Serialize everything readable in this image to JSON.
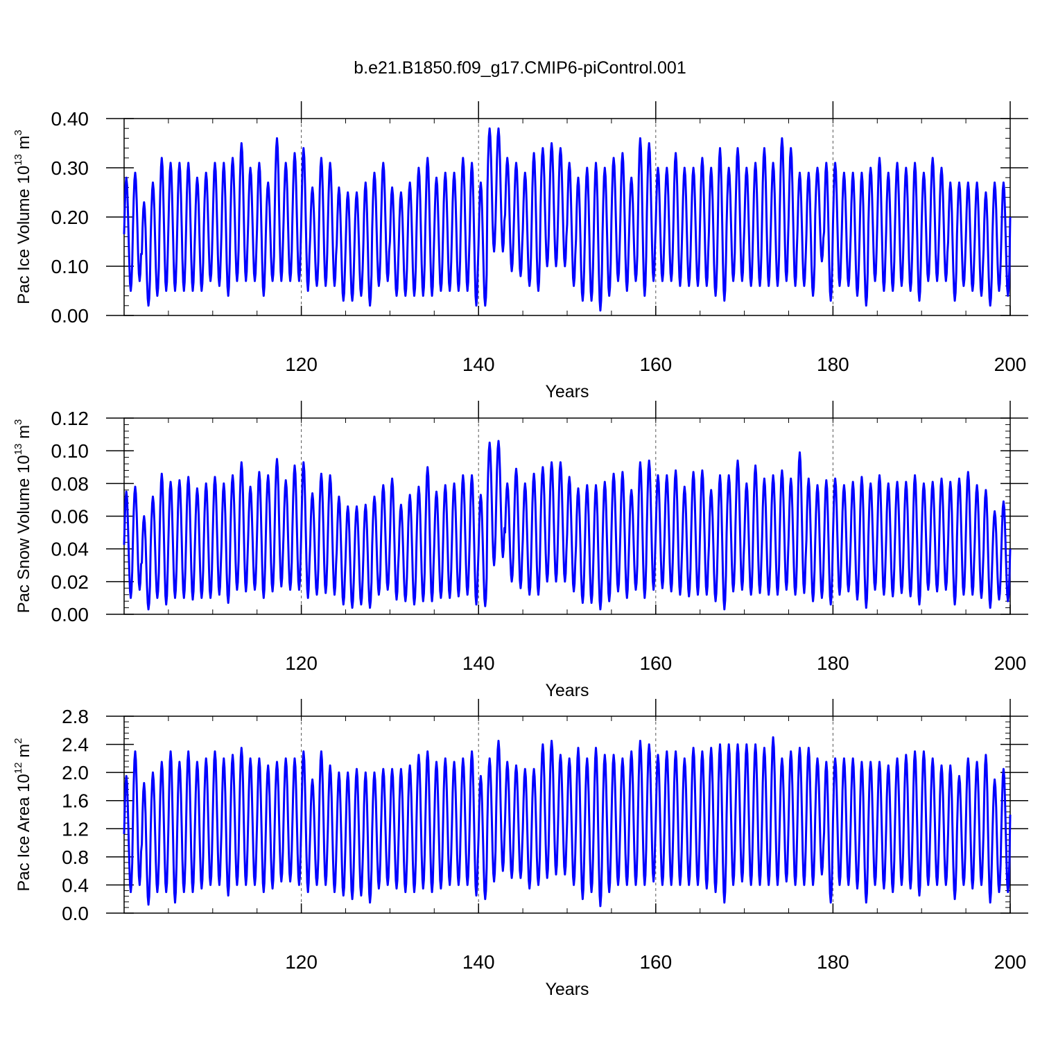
{
  "title": "b.e21.B1850.f09_g17.CMIP6-piControl.001",
  "colors": {
    "series": "#0000ff",
    "axis": "#000000",
    "grid": "#555555"
  },
  "chart_data": [
    {
      "type": "line",
      "title": "b.e21.B1850.f09_g17.CMIP6-piControl.001",
      "xlabel": "Years",
      "ylabel": {
        "text": "Pac Ice Volume 10",
        "exp": "13",
        "unit": " m",
        "unit_exp": "3"
      },
      "xlim": [
        100,
        200
      ],
      "ylim": [
        0,
        0.4
      ],
      "xticks": [
        120,
        140,
        160,
        180,
        200
      ],
      "xtick_labels": [
        "120",
        "140",
        "160",
        "180",
        "200"
      ],
      "yticks": [
        0,
        0.1,
        0.2,
        0.3,
        0.4
      ],
      "ytick_labels": [
        "0.00",
        "0.10",
        "0.20",
        "0.30",
        "0.40"
      ],
      "grid": "vertical dashed at x ticks",
      "series": [
        {
          "name": "Pac Ice Volume",
          "x_start": 100,
          "x_step": 1,
          "annual_max": [
            0.28,
            0.29,
            0.23,
            0.27,
            0.32,
            0.31,
            0.31,
            0.31,
            0.28,
            0.29,
            0.31,
            0.31,
            0.32,
            0.35,
            0.3,
            0.31,
            0.27,
            0.36,
            0.31,
            0.33,
            0.34,
            0.26,
            0.32,
            0.31,
            0.26,
            0.25,
            0.25,
            0.27,
            0.29,
            0.31,
            0.26,
            0.25,
            0.27,
            0.3,
            0.32,
            0.28,
            0.29,
            0.29,
            0.32,
            0.31,
            0.27,
            0.38,
            0.38,
            0.32,
            0.31,
            0.29,
            0.33,
            0.34,
            0.35,
            0.34,
            0.31,
            0.28,
            0.3,
            0.31,
            0.3,
            0.32,
            0.33,
            0.28,
            0.36,
            0.35,
            0.3,
            0.3,
            0.33,
            0.3,
            0.3,
            0.32,
            0.3,
            0.34,
            0.3,
            0.34,
            0.3,
            0.31,
            0.34,
            0.31,
            0.36,
            0.34,
            0.29,
            0.29,
            0.3,
            0.31,
            0.31,
            0.29,
            0.29,
            0.29,
            0.3,
            0.32,
            0.29,
            0.31,
            0.3,
            0.31,
            0.29,
            0.32,
            0.3,
            0.27,
            0.27,
            0.27,
            0.27,
            0.25,
            0.27,
            0.27
          ],
          "annual_min": [
            0.05,
            0.07,
            0.02,
            0.04,
            0.05,
            0.05,
            0.05,
            0.05,
            0.05,
            0.07,
            0.06,
            0.04,
            0.07,
            0.07,
            0.07,
            0.04,
            0.07,
            0.07,
            0.07,
            0.07,
            0.05,
            0.06,
            0.06,
            0.06,
            0.03,
            0.03,
            0.04,
            0.02,
            0.06,
            0.07,
            0.04,
            0.04,
            0.04,
            0.04,
            0.04,
            0.05,
            0.05,
            0.05,
            0.05,
            0.02,
            0.02,
            0.13,
            0.13,
            0.09,
            0.08,
            0.06,
            0.05,
            0.1,
            0.1,
            0.1,
            0.06,
            0.03,
            0.03,
            0.01,
            0.04,
            0.07,
            0.05,
            0.07,
            0.04,
            0.07,
            0.07,
            0.07,
            0.06,
            0.06,
            0.06,
            0.06,
            0.04,
            0.03,
            0.07,
            0.07,
            0.06,
            0.06,
            0.06,
            0.06,
            0.07,
            0.06,
            0.06,
            0.04,
            0.11,
            0.03,
            0.06,
            0.06,
            0.04,
            0.02,
            0.07,
            0.05,
            0.05,
            0.06,
            0.05,
            0.03,
            0.07,
            0.07,
            0.07,
            0.03,
            0.06,
            0.05,
            0.04,
            0.02,
            0.05,
            0.04
          ],
          "end_value": 0.2
        }
      ]
    },
    {
      "type": "line",
      "title": "",
      "xlabel": "Years",
      "ylabel": {
        "text": "Pac Snow Volume 10",
        "exp": "13",
        "unit": " m",
        "unit_exp": "3"
      },
      "xlim": [
        100,
        200
      ],
      "ylim": [
        0,
        0.12
      ],
      "xticks": [
        120,
        140,
        160,
        180,
        200
      ],
      "xtick_labels": [
        "120",
        "140",
        "160",
        "180",
        "200"
      ],
      "yticks": [
        0,
        0.02,
        0.04,
        0.06,
        0.08,
        0.1,
        0.12
      ],
      "ytick_labels": [
        "0.00",
        "0.02",
        "0.04",
        "0.06",
        "0.08",
        "0.10",
        "0.12"
      ],
      "grid": "vertical dashed at x ticks",
      "series": [
        {
          "name": "Pac Snow Volume",
          "x_start": 100,
          "x_step": 1,
          "annual_max": [
            0.075,
            0.078,
            0.06,
            0.072,
            0.086,
            0.081,
            0.082,
            0.084,
            0.077,
            0.08,
            0.084,
            0.08,
            0.085,
            0.093,
            0.078,
            0.087,
            0.085,
            0.095,
            0.082,
            0.091,
            0.093,
            0.074,
            0.086,
            0.085,
            0.072,
            0.066,
            0.066,
            0.067,
            0.072,
            0.079,
            0.083,
            0.067,
            0.073,
            0.078,
            0.09,
            0.075,
            0.079,
            0.08,
            0.085,
            0.085,
            0.073,
            0.105,
            0.106,
            0.08,
            0.089,
            0.08,
            0.086,
            0.09,
            0.093,
            0.093,
            0.084,
            0.077,
            0.079,
            0.079,
            0.081,
            0.086,
            0.087,
            0.076,
            0.093,
            0.094,
            0.085,
            0.085,
            0.088,
            0.078,
            0.087,
            0.088,
            0.076,
            0.085,
            0.085,
            0.094,
            0.08,
            0.091,
            0.083,
            0.085,
            0.088,
            0.083,
            0.099,
            0.083,
            0.079,
            0.082,
            0.083,
            0.079,
            0.081,
            0.084,
            0.08,
            0.085,
            0.08,
            0.081,
            0.081,
            0.085,
            0.08,
            0.081,
            0.083,
            0.081,
            0.083,
            0.087,
            0.079,
            0.076,
            0.063,
            0.069
          ],
          "annual_min": [
            0.01,
            0.015,
            0.003,
            0.01,
            0.006,
            0.01,
            0.01,
            0.009,
            0.01,
            0.01,
            0.012,
            0.007,
            0.015,
            0.014,
            0.015,
            0.01,
            0.014,
            0.017,
            0.015,
            0.015,
            0.01,
            0.012,
            0.013,
            0.012,
            0.006,
            0.004,
            0.006,
            0.004,
            0.012,
            0.015,
            0.009,
            0.008,
            0.006,
            0.008,
            0.008,
            0.01,
            0.01,
            0.011,
            0.012,
            0.006,
            0.005,
            0.03,
            0.035,
            0.02,
            0.016,
            0.012,
            0.012,
            0.02,
            0.02,
            0.02,
            0.014,
            0.007,
            0.007,
            0.003,
            0.008,
            0.014,
            0.01,
            0.015,
            0.01,
            0.015,
            0.016,
            0.014,
            0.012,
            0.011,
            0.012,
            0.012,
            0.008,
            0.003,
            0.014,
            0.015,
            0.012,
            0.013,
            0.012,
            0.012,
            0.015,
            0.012,
            0.013,
            0.008,
            0.01,
            0.006,
            0.012,
            0.014,
            0.009,
            0.004,
            0.015,
            0.012,
            0.011,
            0.013,
            0.011,
            0.006,
            0.015,
            0.014,
            0.015,
            0.006,
            0.012,
            0.012,
            0.01,
            0.004,
            0.009,
            0.008
          ],
          "end_value": 0.04
        }
      ]
    },
    {
      "type": "line",
      "title": "",
      "xlabel": "Years",
      "ylabel": {
        "text": "Pac Ice Area 10",
        "exp": "12",
        "unit": " m",
        "unit_exp": "2"
      },
      "xlim": [
        100,
        200
      ],
      "ylim": [
        0,
        2.8
      ],
      "xticks": [
        120,
        140,
        160,
        180,
        200
      ],
      "xtick_labels": [
        "120",
        "140",
        "160",
        "180",
        "200"
      ],
      "yticks": [
        0,
        0.4,
        0.8,
        1.2,
        1.6,
        2.0,
        2.4,
        2.8
      ],
      "ytick_labels": [
        "0.0",
        "0.4",
        "0.8",
        "1.2",
        "1.6",
        "2.0",
        "2.4",
        "2.8"
      ],
      "grid": "vertical dashed at x ticks",
      "series": [
        {
          "name": "Pac Ice Area",
          "x_start": 100,
          "x_step": 1,
          "annual_max": [
            1.95,
            2.3,
            1.85,
            2.0,
            2.15,
            2.3,
            2.15,
            2.3,
            2.15,
            2.2,
            2.3,
            2.2,
            2.25,
            2.35,
            2.2,
            2.2,
            2.1,
            2.15,
            2.2,
            2.2,
            2.3,
            1.9,
            2.3,
            2.1,
            2.0,
            2.0,
            2.05,
            2.0,
            2.0,
            2.05,
            2.05,
            2.05,
            2.1,
            2.25,
            2.3,
            2.15,
            2.2,
            2.15,
            2.2,
            2.3,
            1.95,
            2.2,
            2.45,
            2.15,
            2.1,
            2.05,
            2.05,
            2.4,
            2.45,
            2.25,
            2.2,
            2.35,
            2.2,
            2.35,
            2.25,
            2.25,
            2.2,
            2.3,
            2.45,
            2.4,
            2.25,
            2.3,
            2.3,
            2.2,
            2.35,
            2.3,
            2.35,
            2.4,
            2.4,
            2.4,
            2.4,
            2.4,
            2.35,
            2.5,
            2.2,
            2.3,
            2.35,
            2.35,
            2.2,
            2.15,
            2.2,
            2.2,
            2.2,
            2.15,
            2.15,
            2.15,
            2.1,
            2.2,
            2.25,
            2.3,
            2.3,
            2.2,
            2.1,
            2.1,
            1.95,
            2.2,
            2.15,
            2.25,
            1.9,
            2.05
          ],
          "annual_min": [
            0.3,
            0.4,
            0.12,
            0.3,
            0.3,
            0.15,
            0.3,
            0.3,
            0.35,
            0.4,
            0.4,
            0.25,
            0.4,
            0.4,
            0.4,
            0.3,
            0.35,
            0.45,
            0.45,
            0.4,
            0.3,
            0.4,
            0.4,
            0.3,
            0.25,
            0.2,
            0.25,
            0.15,
            0.35,
            0.4,
            0.35,
            0.3,
            0.3,
            0.35,
            0.3,
            0.35,
            0.4,
            0.4,
            0.4,
            0.25,
            0.2,
            0.45,
            0.6,
            0.5,
            0.5,
            0.35,
            0.4,
            0.5,
            0.55,
            0.55,
            0.4,
            0.2,
            0.3,
            0.1,
            0.3,
            0.4,
            0.4,
            0.4,
            0.4,
            0.45,
            0.4,
            0.4,
            0.4,
            0.4,
            0.4,
            0.35,
            0.3,
            0.15,
            0.4,
            0.45,
            0.4,
            0.4,
            0.4,
            0.4,
            0.45,
            0.4,
            0.4,
            0.4,
            0.55,
            0.15,
            0.4,
            0.4,
            0.35,
            0.15,
            0.4,
            0.35,
            0.3,
            0.4,
            0.35,
            0.25,
            0.4,
            0.4,
            0.4,
            0.2,
            0.4,
            0.35,
            0.4,
            0.15,
            0.3,
            0.3
          ],
          "end_value": 1.4
        }
      ]
    }
  ]
}
